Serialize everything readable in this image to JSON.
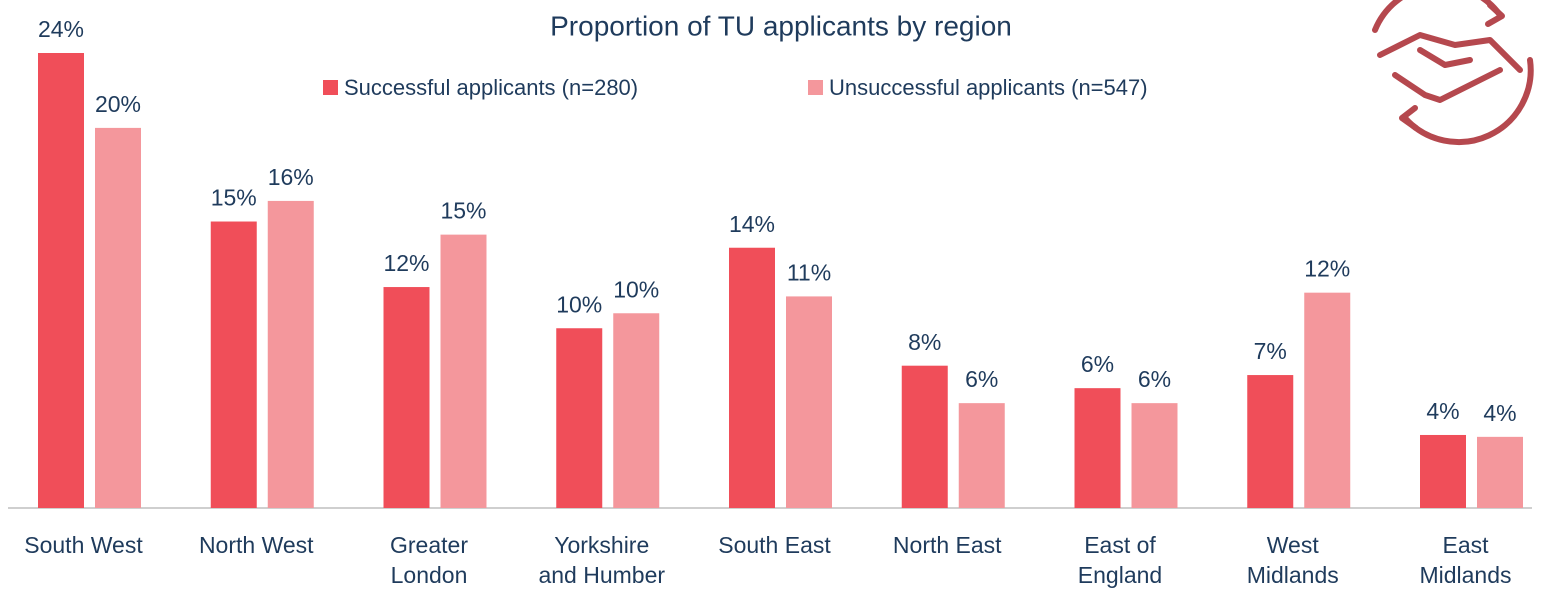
{
  "chart_data": {
    "type": "bar",
    "title": "Proportion of TU applicants by region",
    "categories": [
      "South West",
      "North West",
      "Greater\nLondon",
      "Yorkshire\nand Humber",
      "South East",
      "North East",
      "East of\nEngland",
      "West\nMidlands",
      "East\nMidlands"
    ],
    "series": [
      {
        "name": "Successful applicants (n=280)",
        "color": "#f04e59",
        "values": [
          24.3,
          15.3,
          11.8,
          9.6,
          13.9,
          7.6,
          6.4,
          7.1,
          3.9
        ],
        "value_labels": [
          "24%",
          "15%",
          "12%",
          "10%",
          "14%",
          "8%",
          "6%",
          "7%",
          "4%"
        ]
      },
      {
        "name": "Unsuccessful applicants (n=547)",
        "color": "#f4979c",
        "values": [
          20.3,
          16.4,
          14.6,
          10.4,
          11.3,
          5.6,
          5.6,
          11.5,
          3.8
        ],
        "value_labels": [
          "20%",
          "16%",
          "15%",
          "10%",
          "11%",
          "6%",
          "6%",
          "12%",
          "4%"
        ]
      }
    ]
  }
}
